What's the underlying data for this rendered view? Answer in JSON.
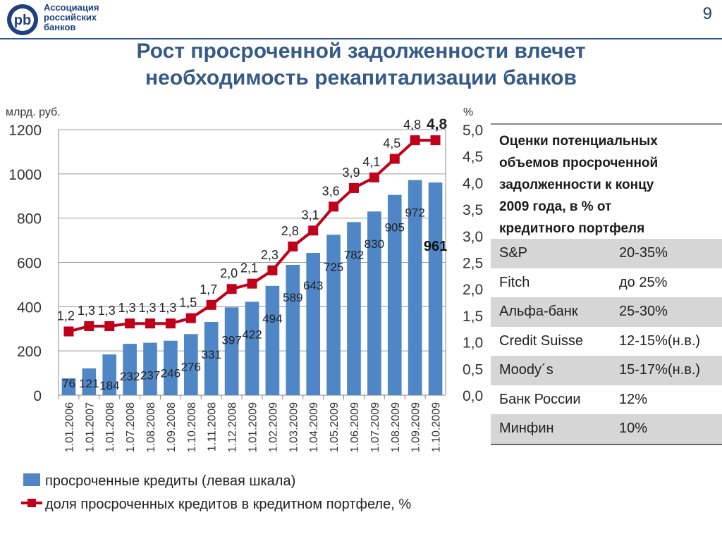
{
  "header": {
    "org_name_line1": "Ассоциация",
    "org_name_line2": "российских",
    "org_name_line3": "банков",
    "logo_monogram": "pb",
    "page_number": "9"
  },
  "title": {
    "line1": "Рост просроченной задолженности влечет",
    "line2": "необходимость рекапитализации банков"
  },
  "chart_data": {
    "type": "bar",
    "categories": [
      "1.01.2006",
      "1.01.2007",
      "1.01.2008",
      "1.07.2008",
      "1.08.2008",
      "1.09.2008",
      "1.10.2008",
      "1.11.2008",
      "1.12.2008",
      "1.01.2009",
      "1.02.2009",
      "1.03.2009",
      "1.04.2009",
      "1.05.2009",
      "1.06.2009",
      "1.07.2009",
      "1.08.2009",
      "1.09.2009",
      "1.10.2009"
    ],
    "y_left_unit": "млрд. руб.",
    "y_right_unit": "%",
    "y_left_ticks": [
      "0",
      "200",
      "400",
      "600",
      "800",
      "1000",
      "1200"
    ],
    "y_right_ticks": [
      "0,0",
      "0,5",
      "1,0",
      "1,5",
      "2,0",
      "2,5",
      "3,0",
      "3,5",
      "4,0",
      "4,5",
      "5,0"
    ],
    "ylim_left": [
      0,
      1200
    ],
    "ylim_right": [
      0,
      5.0
    ],
    "grid": "horizontal",
    "series": [
      {
        "name": "просроченные кредиты (левая шкала)",
        "axis": "left",
        "type": "bar",
        "color": "#4f86c6",
        "values": [
          76,
          121,
          184,
          232,
          237,
          246,
          276,
          331,
          397,
          422,
          494,
          589,
          643,
          725,
          782,
          830,
          905,
          972,
          961
        ],
        "labels": [
          "76",
          "121",
          "184",
          "232",
          "237",
          "246",
          "276",
          "331",
          "397",
          "422",
          "494",
          "589",
          "643",
          "725",
          "782",
          "830",
          "905",
          "972",
          "961"
        ]
      },
      {
        "name": "доля просроченных кредитов в кредитном портфеле, %",
        "axis": "right",
        "type": "line",
        "color": "#c0001a",
        "values": [
          1.2,
          1.3,
          1.3,
          1.35,
          1.35,
          1.35,
          1.45,
          1.7,
          2.0,
          2.1,
          2.35,
          2.8,
          3.1,
          3.55,
          3.9,
          4.1,
          4.45,
          4.8,
          4.8
        ],
        "labels": [
          "1,2",
          "1,3",
          "1,3",
          "1,3",
          "1,3",
          "1,3",
          "1,5",
          "1,7",
          "2,0",
          "2,1",
          "2,3",
          "2,8",
          "3,1",
          "3,6",
          "3,9",
          "4,1",
          "4,5",
          "4,8",
          "4,8"
        ]
      }
    ]
  },
  "panel": {
    "heading": [
      "Оценки потенциальных",
      "объемов  просроченной",
      "задолженности к концу",
      "2009 года, в % от",
      "кредитного портфеля"
    ],
    "rows": [
      {
        "name": "S&P",
        "value": "20-35%"
      },
      {
        "name": "Fitch",
        "value": "до 25%"
      },
      {
        "name": "Альфа-банк",
        "value": "25-30%"
      },
      {
        "name": "Credit Suisse",
        "value": "12-15%(н.в.)"
      },
      {
        "name": "Moody´s",
        "value": "15-17%(н.в.)"
      },
      {
        "name": "Банк России",
        "value": "12%"
      },
      {
        "name": "Минфин",
        "value": "10%"
      }
    ]
  }
}
